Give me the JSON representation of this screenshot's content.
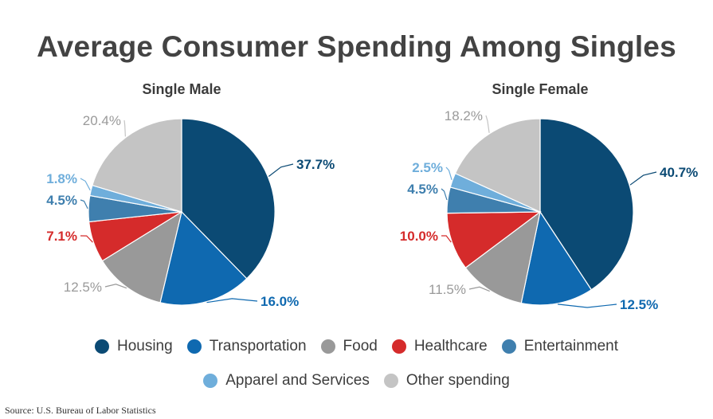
{
  "title": "Average Consumer Spending Among Singles",
  "source": "Source: U.S. Bureau of Labor Statistics",
  "colors": {
    "Housing": "#0b4a74",
    "Transportation": "#0f69b0",
    "Food": "#999999",
    "Healthcare": "#d52b2b",
    "Entertainment": "#3f7fae",
    "Apparel and Services": "#6faedb",
    "Other spending": "#c4c4c4"
  },
  "legend": {
    "row1": [
      "Housing",
      "Transportation",
      "Food",
      "Healthcare",
      "Entertainment"
    ],
    "row2": [
      "Apparel and Services",
      "Other spending"
    ]
  },
  "chart_data": [
    {
      "type": "pie",
      "title": "Single Male",
      "labels": [
        "Housing",
        "Transportation",
        "Food",
        "Healthcare",
        "Entertainment",
        "Apparel and Services",
        "Other spending"
      ],
      "values": [
        37.7,
        16.0,
        12.5,
        7.1,
        4.5,
        1.8,
        20.4
      ],
      "display": [
        "37.7%",
        "16.0%",
        "12.5%",
        "7.1%",
        "4.5%",
        "1.8%",
        "20.4%"
      ]
    },
    {
      "type": "pie",
      "title": "Single Female",
      "labels": [
        "Housing",
        "Transportation",
        "Food",
        "Healthcare",
        "Entertainment",
        "Apparel and Services",
        "Other spending"
      ],
      "values": [
        40.7,
        12.5,
        11.5,
        10.0,
        4.5,
        2.5,
        18.2
      ],
      "display": [
        "40.7%",
        "12.5%",
        "11.5%",
        "10.0%",
        "4.5%",
        "2.5%",
        "18.2%"
      ]
    }
  ]
}
